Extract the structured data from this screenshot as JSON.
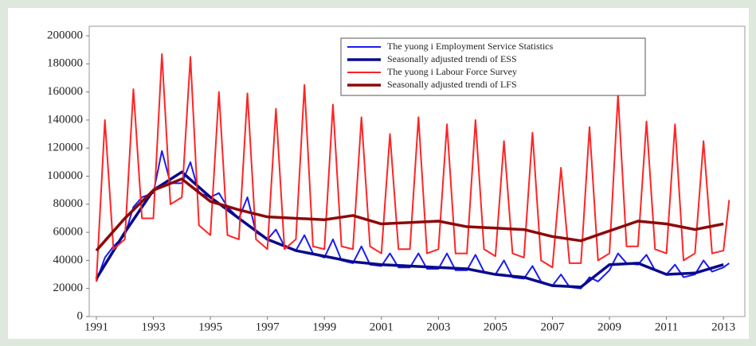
{
  "chart_data": {
    "type": "line",
    "x_label_unused": null,
    "xlim": [
      1990.75,
      2013.75
    ],
    "xticks": [
      1991,
      1993,
      1995,
      1997,
      1999,
      2001,
      2003,
      2005,
      2007,
      2009,
      2011,
      2013
    ],
    "ylim": [
      0,
      200000
    ],
    "yticks": [
      0,
      20000,
      40000,
      60000,
      80000,
      100000,
      120000,
      140000,
      160000,
      180000,
      200000
    ],
    "legend": "top-center",
    "series": [
      {
        "name": "The yuong i Employment Service Statistics",
        "color": "#1c1cf0",
        "width": "thin",
        "x": [
          1991,
          1991.3,
          1991.6,
          1992,
          1992.3,
          1992.6,
          1993,
          1993.3,
          1993.6,
          1994,
          1994.3,
          1994.6,
          1995,
          1995.3,
          1995.6,
          1996,
          1996.3,
          1996.6,
          1997,
          1997.3,
          1997.6,
          1998,
          1998.3,
          1998.6,
          1999,
          1999.3,
          1999.6,
          2000,
          2000.3,
          2000.6,
          2001,
          2001.3,
          2001.6,
          2002,
          2002.3,
          2002.6,
          2003,
          2003.3,
          2003.6,
          2004,
          2004.3,
          2004.6,
          2005,
          2005.3,
          2005.6,
          2006,
          2006.3,
          2006.6,
          2007,
          2007.3,
          2007.6,
          2008,
          2008.3,
          2008.6,
          2009,
          2009.3,
          2009.6,
          2010,
          2010.3,
          2010.6,
          2011,
          2011.3,
          2011.6,
          2012,
          2012.3,
          2012.6,
          2013,
          2013.2
        ],
        "values": [
          25000,
          42000,
          50000,
          58000,
          78000,
          85000,
          88000,
          118000,
          95000,
          95000,
          110000,
          88000,
          85000,
          88000,
          78000,
          70000,
          85000,
          60000,
          55000,
          62000,
          50000,
          47000,
          58000,
          45000,
          42000,
          55000,
          40000,
          38000,
          50000,
          37000,
          36000,
          45000,
          35000,
          35000,
          45000,
          34000,
          34000,
          45000,
          33000,
          33000,
          44000,
          32000,
          30000,
          40000,
          28000,
          27000,
          36000,
          25000,
          22000,
          30000,
          21000,
          20000,
          28000,
          25000,
          33000,
          45000,
          38000,
          37000,
          44000,
          33000,
          30000,
          37000,
          28000,
          30000,
          40000,
          32000,
          35000,
          38000
        ]
      },
      {
        "name": "Seasonally adjusted trendi of ESS",
        "color": "#0a0a8c",
        "width": "thick",
        "x": [
          1991,
          1992,
          1993,
          1994,
          1995,
          1996,
          1997,
          1998,
          1999,
          2000,
          2001,
          2002,
          2003,
          2004,
          2005,
          2006,
          2007,
          2008,
          2009,
          2010,
          2011,
          2012,
          2013
        ],
        "values": [
          27000,
          60000,
          90000,
          103000,
          85000,
          70000,
          55000,
          47000,
          43000,
          39000,
          37000,
          36000,
          35000,
          34000,
          30000,
          28000,
          22000,
          21000,
          37000,
          38000,
          30000,
          31000,
          37000
        ]
      },
      {
        "name": "The yuong i Labour Force Survey",
        "color": "#ff2424",
        "width": "thin",
        "x": [
          1991,
          1991.3,
          1991.6,
          1992,
          1992.3,
          1992.6,
          1993,
          1993.3,
          1993.6,
          1994,
          1994.3,
          1994.6,
          1995,
          1995.3,
          1995.6,
          1996,
          1996.3,
          1996.6,
          1997,
          1997.3,
          1997.6,
          1998,
          1998.3,
          1998.6,
          1999,
          1999.3,
          1999.6,
          2000,
          2000.3,
          2000.6,
          2001,
          2001.3,
          2001.6,
          2002,
          2002.3,
          2002.6,
          2003,
          2003.3,
          2003.6,
          2004,
          2004.3,
          2004.6,
          2005,
          2005.3,
          2005.6,
          2006,
          2006.3,
          2006.6,
          2007,
          2007.3,
          2007.6,
          2008,
          2008.3,
          2008.6,
          2009,
          2009.3,
          2009.6,
          2010,
          2010.3,
          2010.6,
          2011,
          2011.3,
          2011.6,
          2012,
          2012.3,
          2012.6,
          2013,
          2013.2
        ],
        "values": [
          25000,
          140000,
          48000,
          55000,
          162000,
          70000,
          70000,
          187000,
          80000,
          85000,
          185000,
          65000,
          58000,
          160000,
          58000,
          55000,
          159000,
          55000,
          48000,
          148000,
          48000,
          55000,
          165000,
          50000,
          48000,
          151000,
          50000,
          48000,
          142000,
          50000,
          45000,
          130000,
          48000,
          48000,
          142000,
          45000,
          48000,
          137000,
          45000,
          45000,
          140000,
          48000,
          43000,
          125000,
          45000,
          42000,
          131000,
          40000,
          35000,
          106000,
          38000,
          38000,
          135000,
          40000,
          45000,
          158000,
          50000,
          50000,
          139000,
          48000,
          45000,
          137000,
          40000,
          45000,
          125000,
          45000,
          47000,
          83000
        ]
      },
      {
        "name": "Seasonally adjusted trendi of LFS",
        "color": "#8c0a0a",
        "width": "thick",
        "x": [
          1991,
          1992,
          1993,
          1994,
          1995,
          1996,
          1997,
          1998,
          1999,
          2000,
          2001,
          2002,
          2003,
          2004,
          2005,
          2006,
          2007,
          2008,
          2009,
          2010,
          2011,
          2012,
          2013
        ],
        "values": [
          47000,
          70000,
          90000,
          98000,
          82000,
          76000,
          71000,
          70000,
          69000,
          72000,
          66000,
          67000,
          68000,
          64000,
          63000,
          62000,
          57000,
          54000,
          61000,
          68000,
          66000,
          62000,
          66000
        ]
      }
    ]
  }
}
